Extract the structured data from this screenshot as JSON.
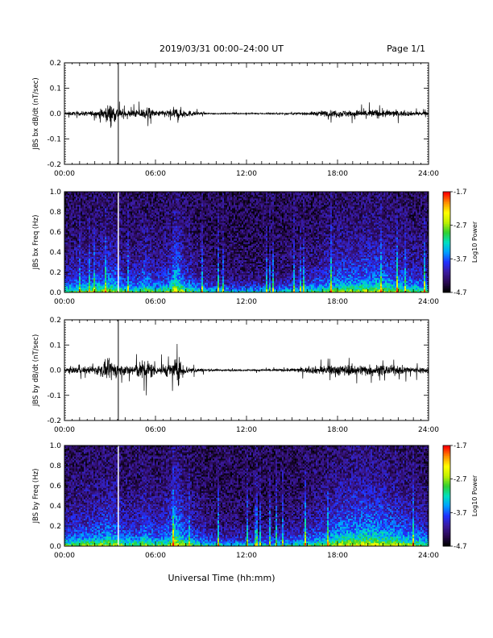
{
  "header": {
    "title": "2019/03/31  00:00–24:00 UT",
    "page": "Page 1/1"
  },
  "footer": {
    "xlabel": "Universal Time (hh:mm)"
  },
  "colors": {
    "trace": "#000000",
    "event_line": "#000000",
    "spectrogram_event_line": "#ffffff",
    "colormap": [
      "#000000",
      "#2a0a55",
      "#3a1aa0",
      "#2030ff",
      "#00a0ff",
      "#00e0c0",
      "#30d030",
      "#c0f000",
      "#ffff00",
      "#ff9000",
      "#ff0000"
    ]
  },
  "chart_data": [
    {
      "type": "line",
      "ylabel": "JBS bx dB/dt (nT/sec)",
      "xlim": [
        0,
        24
      ],
      "ylim": [
        -0.2,
        0.2
      ],
      "yticks": [
        "0.2",
        "0.1",
        "0.0",
        "-0.1",
        "-0.2"
      ],
      "xticks": [
        "00:00",
        "06:00",
        "12:00",
        "18:00",
        "24:00"
      ],
      "event_marker_hour": 3.55,
      "series": [
        {
          "hour": [
            0,
            1,
            2,
            2.5,
            3,
            3.3,
            3.6,
            4,
            5,
            5.5,
            6,
            7,
            7.5,
            8,
            9,
            10,
            11,
            12,
            13,
            14,
            15,
            16,
            17,
            18,
            19,
            20,
            21,
            22,
            23,
            24
          ],
          "amplitude": [
            0.012,
            0.014,
            0.018,
            0.035,
            0.07,
            0.06,
            0.035,
            0.02,
            0.03,
            0.05,
            0.018,
            0.03,
            0.045,
            0.025,
            0.008,
            0.004,
            0.003,
            0.004,
            0.004,
            0.005,
            0.007,
            0.01,
            0.02,
            0.025,
            0.022,
            0.03,
            0.028,
            0.02,
            0.015,
            0.012
          ]
        }
      ]
    },
    {
      "type": "heatmap",
      "ylabel": "JBS bx Freq (Hz)",
      "xlim": [
        0,
        24
      ],
      "ylim": [
        0.0,
        1.0
      ],
      "yticks": [
        "1.0",
        "0.8",
        "0.6",
        "0.4",
        "0.2",
        "0.0"
      ],
      "xticks": [
        "00:00",
        "06:00",
        "12:00",
        "18:00",
        "24:00"
      ],
      "colorbar": {
        "label": "Log10 Power",
        "ticks": [
          "-1.7",
          "-2.7",
          "-3.7",
          "-4.7"
        ],
        "range": [
          -4.7,
          -1.7
        ]
      },
      "event_marker_hour": 3.55,
      "activity_hour": [
        0,
        1,
        2,
        3,
        3.6,
        4,
        5,
        5.2,
        6,
        7,
        7.3,
        8,
        9,
        10,
        11,
        12,
        13,
        14,
        15,
        16,
        17,
        18,
        19,
        20,
        21,
        22,
        23,
        24
      ],
      "activity": [
        0.35,
        0.4,
        0.45,
        0.55,
        0.5,
        0.35,
        0.4,
        0.55,
        0.35,
        0.5,
        0.8,
        0.45,
        0.25,
        0.15,
        0.12,
        0.12,
        0.12,
        0.15,
        0.2,
        0.28,
        0.4,
        0.55,
        0.55,
        0.6,
        0.6,
        0.5,
        0.4,
        0.35
      ]
    },
    {
      "type": "line",
      "ylabel": "JBS by dB/dt (nT/sec)",
      "xlim": [
        0,
        24
      ],
      "ylim": [
        -0.2,
        0.2
      ],
      "yticks": [
        "0.2",
        "0.1",
        "0.0",
        "-0.1",
        "-0.2"
      ],
      "xticks": [
        "00:00",
        "06:00",
        "12:00",
        "18:00",
        "24:00"
      ],
      "event_marker_hour": 3.55,
      "series": [
        {
          "hour": [
            0,
            1,
            2,
            2.5,
            3,
            3.3,
            3.6,
            4,
            5,
            5.5,
            6,
            7,
            7.5,
            8,
            9,
            10,
            11,
            12,
            13,
            14,
            15,
            16,
            17,
            18,
            19,
            20,
            21,
            22,
            23,
            24
          ],
          "amplitude": [
            0.02,
            0.022,
            0.028,
            0.05,
            0.07,
            0.06,
            0.04,
            0.03,
            0.06,
            0.08,
            0.03,
            0.05,
            0.09,
            0.03,
            0.012,
            0.007,
            0.006,
            0.006,
            0.007,
            0.008,
            0.012,
            0.02,
            0.03,
            0.04,
            0.035,
            0.04,
            0.035,
            0.03,
            0.025,
            0.02
          ]
        }
      ]
    },
    {
      "type": "heatmap",
      "ylabel": "JBS by Freq (Hz)",
      "xlim": [
        0,
        24
      ],
      "ylim": [
        0.0,
        1.0
      ],
      "yticks": [
        "1.0",
        "0.8",
        "0.6",
        "0.4",
        "0.2",
        "0.0"
      ],
      "xticks": [
        "00:00",
        "06:00",
        "12:00",
        "18:00",
        "24:00"
      ],
      "colorbar": {
        "label": "Log10 Power",
        "ticks": [
          "-1.7",
          "-2.7",
          "-3.7",
          "-4.7"
        ],
        "range": [
          -4.7,
          -1.7
        ]
      },
      "event_marker_hour": 3.55,
      "activity_hour": [
        0,
        1,
        2,
        3,
        3.6,
        4,
        5,
        5.2,
        6,
        7,
        7.3,
        8,
        9,
        10,
        11,
        12,
        13,
        14,
        15,
        16,
        17,
        18,
        19,
        20,
        21,
        22,
        23,
        24
      ],
      "activity": [
        0.4,
        0.45,
        0.5,
        0.6,
        0.55,
        0.4,
        0.45,
        0.6,
        0.4,
        0.55,
        0.85,
        0.5,
        0.3,
        0.2,
        0.15,
        0.15,
        0.15,
        0.18,
        0.25,
        0.35,
        0.45,
        0.65,
        0.7,
        0.75,
        0.7,
        0.6,
        0.5,
        0.4
      ]
    }
  ]
}
